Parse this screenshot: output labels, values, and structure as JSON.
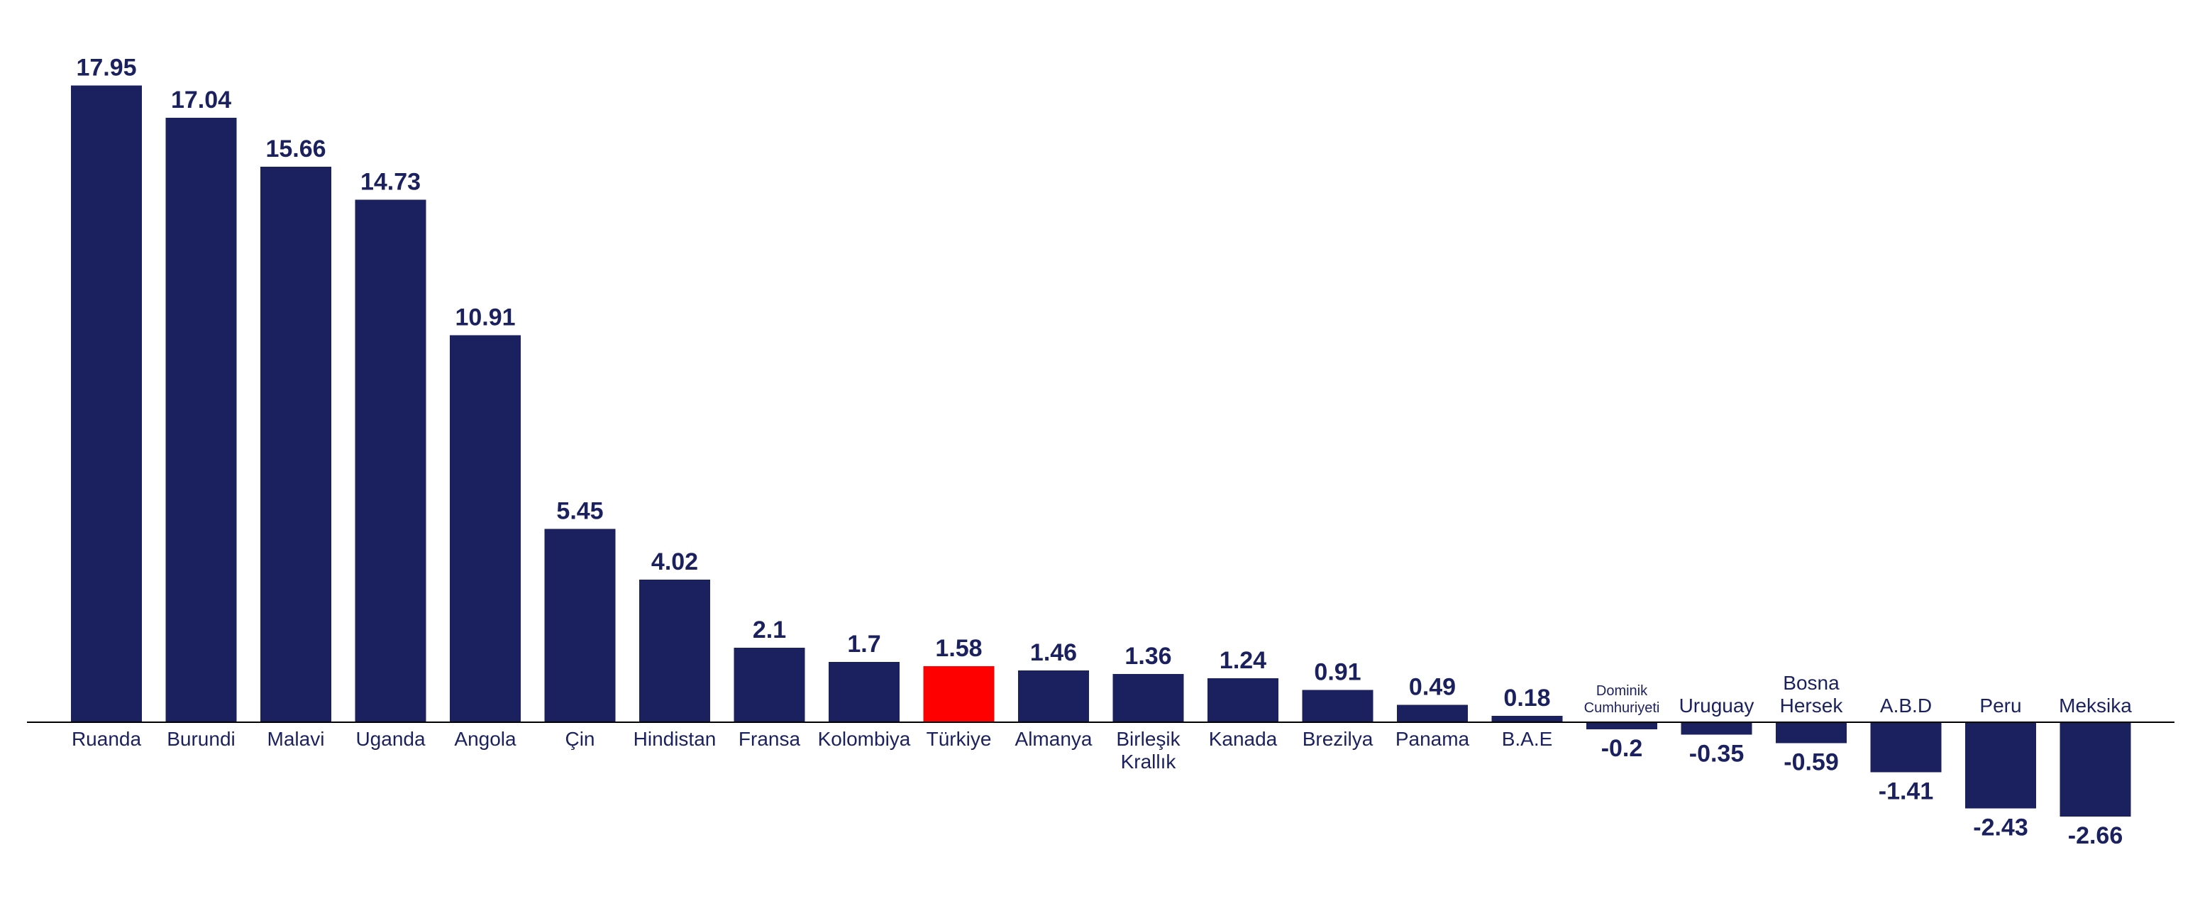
{
  "chart_data": {
    "type": "bar",
    "categories": [
      [
        "Ruanda"
      ],
      [
        "Burundi"
      ],
      [
        "Malavi"
      ],
      [
        "Uganda"
      ],
      [
        "Angola"
      ],
      [
        "Çin"
      ],
      [
        "Hindistan"
      ],
      [
        "Fransa"
      ],
      [
        "Kolombiya"
      ],
      [
        "Türkiye"
      ],
      [
        "Almanya"
      ],
      [
        "Birleşik",
        "Krallık"
      ],
      [
        "Kanada"
      ],
      [
        "Brezilya"
      ],
      [
        "Panama"
      ],
      [
        "B.A.E"
      ],
      [
        "Dominik",
        "Cumhuriyeti"
      ],
      [
        "Uruguay"
      ],
      [
        "Bosna",
        "Hersek"
      ],
      [
        "A.B.D"
      ],
      [
        "Peru"
      ],
      [
        "Meksika"
      ]
    ],
    "values": [
      17.95,
      17.04,
      15.66,
      14.73,
      10.91,
      5.45,
      4.02,
      2.1,
      1.7,
      1.58,
      1.46,
      1.36,
      1.24,
      0.91,
      0.49,
      0.18,
      -0.2,
      -0.35,
      -0.59,
      -1.41,
      -2.43,
      -2.66
    ],
    "value_labels": [
      "17.95",
      "17.04",
      "15.66",
      "14.73",
      "10.91",
      "5.45",
      "4.02",
      "2.1",
      "1.7",
      "1.58",
      "1.46",
      "1.36",
      "1.24",
      "0.91",
      "0.49",
      "0.18",
      "-0.2",
      "-0.35",
      "-0.59",
      "-1.41",
      "-2.43",
      "-2.66"
    ],
    "highlight_category": "Türkiye",
    "title": "",
    "xlabel": "",
    "ylabel": "",
    "ylim": [
      -3.3,
      18.8
    ],
    "grid": false,
    "legend": "none"
  },
  "colors": {
    "bar": "#1b215e",
    "highlight": "#ff0000",
    "text": "#1b215e",
    "axis": "#000000",
    "background": "#ffffff"
  }
}
